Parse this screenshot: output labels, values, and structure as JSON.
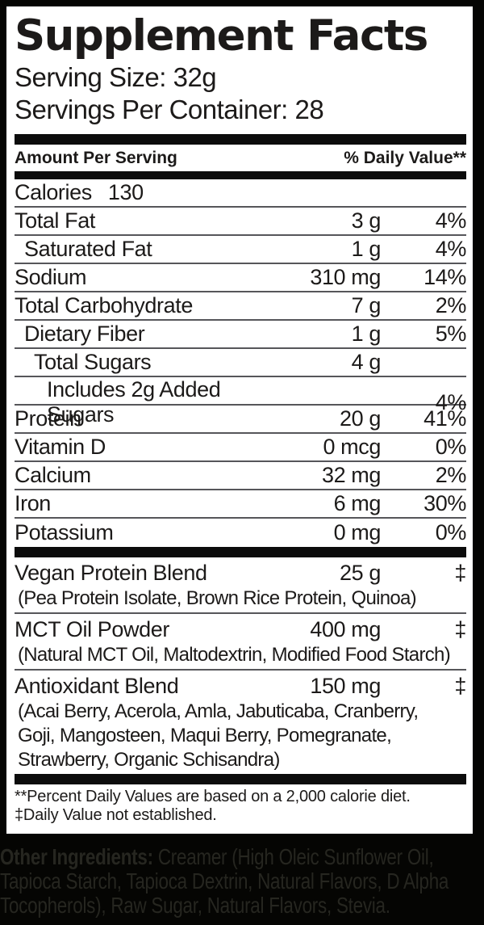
{
  "label": {
    "title": "Supplement Facts",
    "serving_size": "Serving Size: 32g",
    "servings_per_container": "Servings Per Container: 28",
    "header": {
      "amount_col": "Amount Per Serving",
      "dv_col": "% Daily Value**"
    },
    "calories": {
      "name": "Calories",
      "value": "130"
    },
    "nutrients": [
      {
        "name": "Total Fat",
        "amount": "3 g",
        "dv": "4%",
        "indent": 0
      },
      {
        "name": "Saturated Fat",
        "amount": "1 g",
        "dv": "4%",
        "indent": 1
      },
      {
        "name": "Sodium",
        "amount": "310 mg",
        "dv": "14%",
        "indent": 0
      },
      {
        "name": "Total Carbohydrate",
        "amount": "7 g",
        "dv": "2%",
        "indent": 0
      },
      {
        "name": "Dietary Fiber",
        "amount": "1 g",
        "dv": "5%",
        "indent": 1
      },
      {
        "name": "Total Sugars",
        "amount": "4 g",
        "dv": "",
        "indent": 2
      },
      {
        "name": "Includes 2g Added Sugars",
        "amount": "",
        "dv": "4%",
        "indent": 3
      },
      {
        "name": "Protein",
        "amount": "20 g",
        "dv": "41%",
        "indent": 0
      },
      {
        "name": "Vitamin D",
        "amount": "0 mcg",
        "dv": "0%",
        "indent": 0
      },
      {
        "name": "Calcium",
        "amount": "32 mg",
        "dv": "2%",
        "indent": 0
      },
      {
        "name": "Iron",
        "amount": "6 mg",
        "dv": "30%",
        "indent": 0
      },
      {
        "name": "Potassium",
        "amount": "0 mg",
        "dv": "0%",
        "indent": 0
      }
    ],
    "blends": [
      {
        "name": "Vegan Protein Blend",
        "amount": "25 g",
        "dv": "‡",
        "components": [
          "(Pea Protein Isolate, Brown Rice Protein, Quinoa)"
        ]
      },
      {
        "name": "MCT Oil Powder",
        "amount": "400 mg",
        "dv": "‡",
        "components": [
          "(Natural MCT Oil, Maltodextrin, Modified Food Starch)"
        ]
      },
      {
        "name": "Antioxidant Blend",
        "amount": "150 mg",
        "dv": "‡",
        "components": [
          "(Acai Berry, Acerola, Amla, Jabuticaba, Cranberry,",
          "Goji, Mangosteen, Maqui Berry, Pomegranate,",
          "Strawberry, Organic Schisandra)"
        ]
      }
    ],
    "footnotes": [
      "**Percent Daily Values are based on a 2,000 calorie diet.",
      "‡Daily Value not established."
    ]
  },
  "other_ingredients": {
    "bold_label": "Other Ingredients:",
    "line1_rest": " Creamer (High Oleic Sunflower Oil,",
    "line2": "Tapioca Starch, Tapioca Dextrin, Natural Flavors, D Alpha",
    "line3": "Tocopherols), Raw Sugar, Natural Flavors, Stevia."
  },
  "colors": {
    "label_background": "#ffffff",
    "label_text": "#1c1a19",
    "thick_bar": "#0c0c0c",
    "thin_separator": "#56565a",
    "outer_background": "#050503",
    "other_ingredients_text": "#262620"
  }
}
